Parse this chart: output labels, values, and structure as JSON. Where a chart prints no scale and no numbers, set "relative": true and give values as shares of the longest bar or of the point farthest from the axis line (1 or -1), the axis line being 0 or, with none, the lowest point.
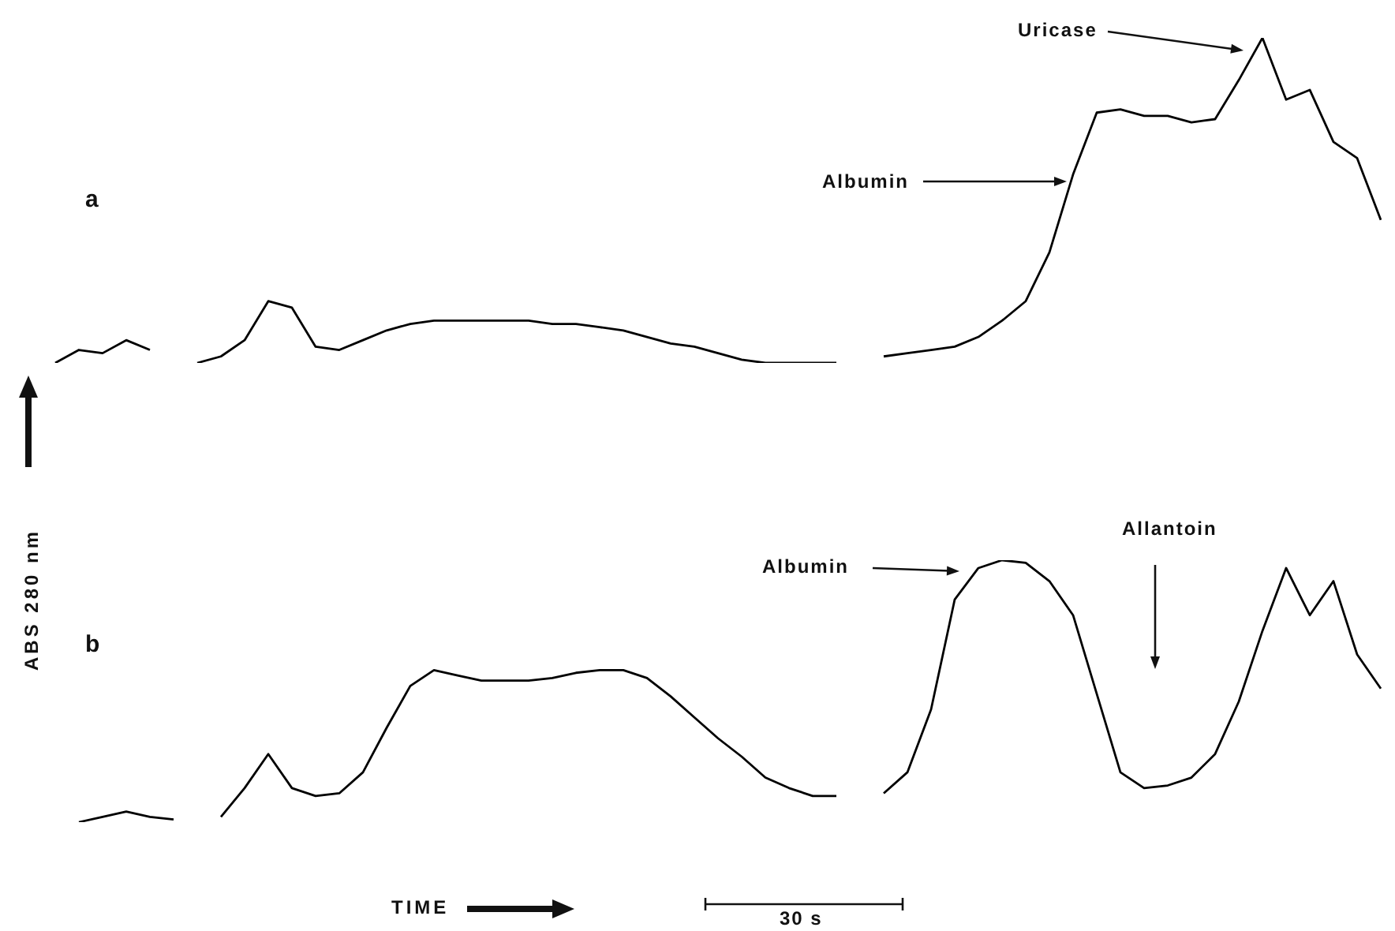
{
  "chart_data": [
    {
      "type": "line",
      "title": "a",
      "relative": true,
      "categories": [
        null,
        null,
        null,
        null,
        null,
        null,
        null,
        null,
        null,
        null,
        null,
        null,
        null,
        null,
        null,
        null,
        null,
        null,
        null,
        null,
        null,
        null,
        null,
        null,
        null,
        null,
        null,
        null,
        null,
        null,
        null,
        null,
        null,
        null,
        null,
        null,
        null,
        null,
        null,
        null,
        null,
        null,
        null,
        null,
        null,
        null,
        null,
        null,
        null,
        null,
        null,
        null,
        null,
        null,
        null,
        null,
        null
      ],
      "series": [
        {
          "color": "#000000",
          "values": [
            0,
            0.04,
            0.03,
            0.07,
            0.04,
            null,
            null,
            null,
            null,
            null,
            null,
            null,
            null,
            null,
            null,
            null,
            null,
            null,
            null,
            null,
            null,
            null,
            null,
            null,
            null,
            null,
            null,
            null,
            null,
            null,
            null,
            null,
            null,
            null,
            null,
            null,
            null,
            null,
            null,
            null,
            null,
            null,
            null,
            null,
            null,
            null,
            null,
            null,
            null,
            null,
            null,
            null,
            null,
            null,
            null,
            null,
            null
          ]
        },
        {
          "color": "#000000",
          "values": [
            null,
            null,
            null,
            null,
            null,
            null,
            0,
            0.02,
            0.07,
            0.19,
            0.17,
            0.05,
            0.04,
            0.07,
            0.1,
            0.12,
            0.13,
            0.13,
            0.13,
            0.13,
            0.13,
            0.12,
            0.12,
            0.11,
            0.1,
            0.08,
            0.06,
            0.05,
            0.03,
            0.01,
            0,
            0,
            0,
            0,
            null,
            null,
            null,
            null,
            null,
            null,
            null,
            null,
            null,
            null,
            null,
            null,
            null,
            null,
            null,
            null,
            null,
            null,
            null,
            null,
            null,
            null,
            null
          ]
        },
        {
          "color": "#000000",
          "values": [
            null,
            null,
            null,
            null,
            null,
            null,
            null,
            null,
            null,
            null,
            null,
            null,
            null,
            null,
            null,
            null,
            null,
            null,
            null,
            null,
            null,
            null,
            null,
            null,
            null,
            null,
            null,
            null,
            null,
            null,
            null,
            null,
            null,
            null,
            null,
            0.02,
            0.03,
            0.04,
            0.05,
            0.08,
            0.13,
            0.19,
            0.34,
            0.58,
            0.77,
            0.78,
            0.76,
            0.76,
            0.74,
            0.75,
            0.87,
            1,
            0.81,
            0.84,
            0.68,
            0.63,
            0.44
          ]
        }
      ],
      "annotations": [
        "Albumin",
        "Uricase"
      ]
    },
    {
      "type": "line",
      "title": "b",
      "relative": true,
      "ylabel": "ABS 280 nm",
      "xlabel": "TIME",
      "categories": [
        null,
        null,
        null,
        null,
        null,
        null,
        null,
        null,
        null,
        null,
        null,
        null,
        null,
        null,
        null,
        null,
        null,
        null,
        null,
        null,
        null,
        null,
        null,
        null,
        null,
        null,
        null,
        null,
        null,
        null,
        null,
        null,
        null,
        null,
        null,
        null,
        null,
        null,
        null,
        null,
        null,
        null,
        null,
        null,
        null,
        null,
        null,
        null,
        null,
        null,
        null,
        null,
        null,
        null,
        null,
        null,
        null
      ],
      "series": [
        {
          "color": "#000000",
          "values": [
            null,
            0,
            0.02,
            0.04,
            0.02,
            0.01,
            null,
            null,
            null,
            null,
            null,
            null,
            null,
            null,
            null,
            null,
            null,
            null,
            null,
            null,
            null,
            null,
            null,
            null,
            null,
            null,
            null,
            null,
            null,
            null,
            null,
            null,
            null,
            null,
            null,
            null,
            null,
            null,
            null,
            null,
            null,
            null,
            null,
            null,
            null,
            null,
            null,
            null,
            null,
            null,
            null,
            null,
            null,
            null,
            null,
            null,
            null
          ]
        },
        {
          "color": "#000000",
          "values": [
            null,
            null,
            null,
            null,
            null,
            null,
            null,
            0.02,
            0.13,
            0.26,
            0.13,
            0.1,
            0.11,
            0.19,
            0.36,
            0.52,
            0.58,
            0.56,
            0.54,
            0.54,
            0.54,
            0.55,
            0.57,
            0.58,
            0.58,
            0.55,
            0.48,
            0.4,
            0.32,
            0.25,
            0.17,
            0.13,
            0.1,
            0.1,
            null,
            null,
            null,
            null,
            null,
            null,
            null,
            null,
            null,
            null,
            null,
            null,
            null,
            null,
            null,
            null,
            null,
            null,
            null,
            null,
            null,
            null,
            null
          ]
        },
        {
          "color": "#000000",
          "values": [
            null,
            null,
            null,
            null,
            null,
            null,
            null,
            null,
            null,
            null,
            null,
            null,
            null,
            null,
            null,
            null,
            null,
            null,
            null,
            null,
            null,
            null,
            null,
            null,
            null,
            null,
            null,
            null,
            null,
            null,
            null,
            null,
            null,
            null,
            null,
            0.11,
            0.19,
            0.43,
            0.85,
            0.97,
            1,
            0.99,
            0.92,
            0.79,
            0.49,
            0.19,
            0.13,
            0.14,
            0.17,
            0.26,
            0.46,
            0.73,
            0.97,
            0.79,
            0.92,
            0.64,
            0.51
          ]
        }
      ],
      "annotations": [
        "Albumin",
        "Allantoin",
        "30 s"
      ]
    }
  ]
}
